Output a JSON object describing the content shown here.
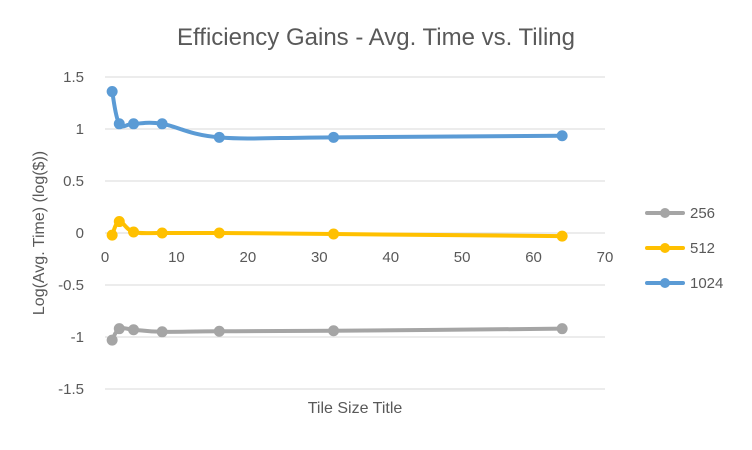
{
  "chart_data": {
    "type": "line",
    "title": "Efficiency Gains - Avg. Time vs. Tiling",
    "xlabel": "Tile Size Title",
    "ylabel": "Log(Avg. Time) (log($))",
    "xlim": [
      0,
      70
    ],
    "ylim": [
      -1.5,
      1.5
    ],
    "x_ticks": [
      0,
      10,
      20,
      30,
      40,
      50,
      60,
      70
    ],
    "x_tick_labels": [
      "0",
      "10",
      "20",
      "30",
      "40",
      "50",
      "60",
      "70"
    ],
    "y_ticks": [
      1.5,
      1,
      0.5,
      0,
      -0.5,
      -1,
      -1.5
    ],
    "y_tick_labels": [
      "1.5",
      "1",
      "0.5",
      "0",
      "-0.5",
      "-1",
      "-1.5"
    ],
    "grid": "horizontal",
    "legend_position": "right",
    "smooth": true,
    "series": [
      {
        "name": "256",
        "color": "#A5A5A5",
        "x": [
          1,
          2,
          4,
          8,
          16,
          32,
          64
        ],
        "y": [
          -1.03,
          -0.92,
          -0.93,
          -0.95,
          -0.945,
          -0.94,
          -0.92
        ]
      },
      {
        "name": "512",
        "color": "#FFC000",
        "x": [
          1,
          2,
          4,
          8,
          16,
          32,
          64
        ],
        "y": [
          -0.02,
          0.11,
          0.01,
          0.0,
          0.0,
          -0.01,
          -0.03
        ]
      },
      {
        "name": "1024",
        "color": "#5B9BD5",
        "x": [
          1,
          2,
          4,
          8,
          16,
          32,
          64
        ],
        "y": [
          1.36,
          1.05,
          1.05,
          1.05,
          0.92,
          0.92,
          0.935
        ]
      }
    ]
  }
}
